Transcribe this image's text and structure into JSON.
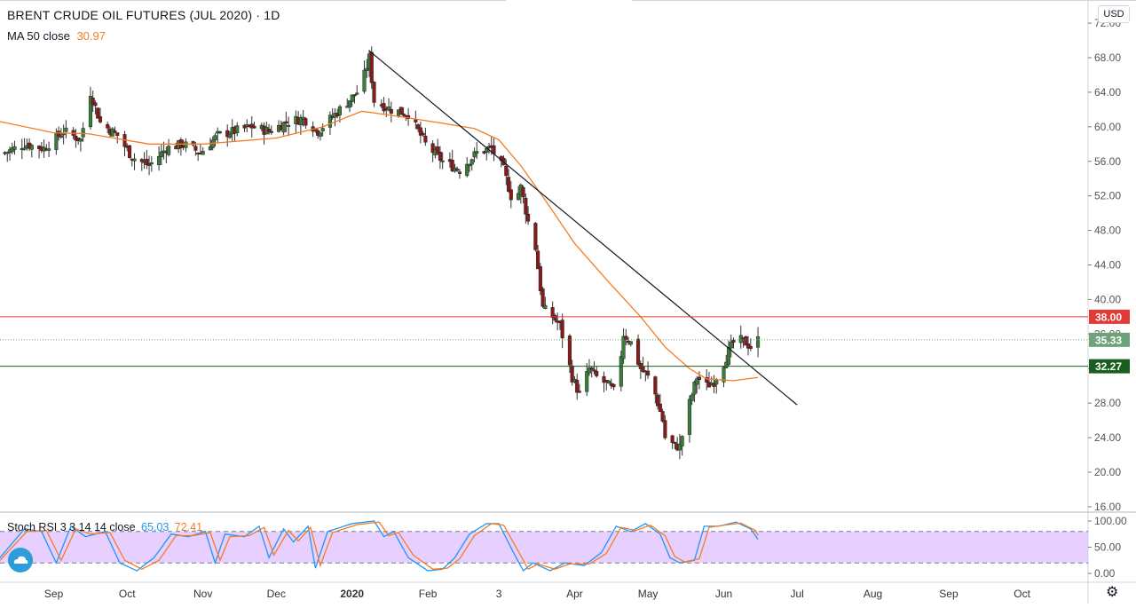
{
  "title": "BRENT CRUDE OIL FUTURES (JUL 2020) · 1D",
  "currency": "USD",
  "ma": {
    "label": "MA 50 close",
    "value": "30.97",
    "color": "#f57c22"
  },
  "stoch": {
    "label": "Stoch RSI 3 3 14 14 close",
    "k": "65.03",
    "d": "72.41",
    "k_color": "#2196f3",
    "d_color": "#f57c22"
  },
  "colors": {
    "up": "#26a69a",
    "down": "#ef5350",
    "up_body": "#3b7d3b",
    "down_body": "#8b1a1a",
    "resistance": "#e53935",
    "support": "#1b5e20",
    "last": "#6fa27a",
    "trendline": "#131722",
    "band": "#e3c8ff"
  },
  "chart_data": [
    {
      "type": "candlestick",
      "title": "BRENT CRUDE OIL FUTURES (JUL 2020) · 1D",
      "ylim": [
        16,
        72
      ],
      "y_ticks": [
        "16.00",
        "20.00",
        "24.00",
        "28.00",
        "32.00",
        "36.00",
        "40.00",
        "44.00",
        "48.00",
        "52.00",
        "56.00",
        "60.00",
        "64.00",
        "68.00",
        "72.00"
      ],
      "x_ticks": [
        "Sep",
        "Oct",
        "Nov",
        "Dec",
        "2020",
        "Feb",
        "3",
        "Apr",
        "May",
        "Jun",
        "Jul",
        "Aug",
        "Sep",
        "Oct"
      ],
      "x_tick_dates": [
        "2019-09-01",
        "2019-10-01",
        "2019-11-01",
        "2019-12-01",
        "2020-01-01",
        "2020-02-01",
        "2020-03-01",
        "2020-04-01",
        "2020-05-01",
        "2020-06-01",
        "2020-07-01",
        "2020-08-01",
        "2020-09-01",
        "2020-10-01"
      ],
      "xlim": [
        "2019-08-10",
        "2020-10-28"
      ],
      "close_path": [
        [
          "2019-08-12",
          57
        ],
        [
          "2019-08-20",
          58
        ],
        [
          "2019-08-28",
          57.5
        ],
        [
          "2019-09-05",
          59.5
        ],
        [
          "2019-09-12",
          58.5
        ],
        [
          "2019-09-16",
          64
        ],
        [
          "2019-09-20",
          60.5
        ],
        [
          "2019-09-27",
          59
        ],
        [
          "2019-10-03",
          56.5
        ],
        [
          "2019-10-10",
          55.5
        ],
        [
          "2019-10-17",
          57.5
        ],
        [
          "2019-10-24",
          58
        ],
        [
          "2019-10-31",
          57
        ],
        [
          "2019-11-07",
          59
        ],
        [
          "2019-11-14",
          59.5
        ],
        [
          "2019-11-21",
          60
        ],
        [
          "2019-11-28",
          59.5
        ],
        [
          "2019-12-05",
          60.5
        ],
        [
          "2019-12-12",
          61
        ],
        [
          "2019-12-18",
          59.5
        ],
        [
          "2019-12-27",
          62
        ],
        [
          "2020-01-03",
          64
        ],
        [
          "2020-01-06",
          66
        ],
        [
          "2020-01-08",
          68
        ],
        [
          "2020-01-10",
          63
        ],
        [
          "2020-01-17",
          62
        ],
        [
          "2020-01-24",
          61.5
        ],
        [
          "2020-01-31",
          58
        ],
        [
          "2020-02-07",
          56
        ],
        [
          "2020-02-14",
          55
        ],
        [
          "2020-02-21",
          57
        ],
        [
          "2020-02-27",
          57.5
        ],
        [
          "2020-03-03",
          55
        ],
        [
          "2020-03-07",
          51
        ],
        [
          "2020-03-10",
          53
        ],
        [
          "2020-03-13",
          49
        ],
        [
          "2020-03-16",
          46
        ],
        [
          "2020-03-19",
          39
        ],
        [
          "2020-03-23",
          38
        ],
        [
          "2020-03-26",
          37
        ],
        [
          "2020-03-31",
          31
        ],
        [
          "2020-04-03",
          29
        ],
        [
          "2020-04-07",
          32
        ],
        [
          "2020-04-10",
          31
        ],
        [
          "2020-04-15",
          30
        ],
        [
          "2020-04-18",
          29
        ],
        [
          "2020-04-21",
          36
        ],
        [
          "2020-04-24",
          35
        ],
        [
          "2020-04-28",
          32
        ],
        [
          "2020-05-01",
          31
        ],
        [
          "2020-05-04",
          29
        ],
        [
          "2020-05-07",
          26
        ],
        [
          "2020-05-08",
          24
        ],
        [
          "2020-05-12",
          23
        ],
        [
          "2020-05-14",
          23
        ],
        [
          "2020-05-18",
          28
        ],
        [
          "2020-05-21",
          31
        ],
        [
          "2020-05-25",
          30
        ],
        [
          "2020-05-28",
          30.5
        ],
        [
          "2020-05-31",
          32
        ],
        [
          "2020-06-03",
          34
        ],
        [
          "2020-06-06",
          35.5
        ],
        [
          "2020-06-10",
          35
        ],
        [
          "2020-06-12",
          34.5
        ],
        [
          "2020-06-15",
          35.33
        ]
      ],
      "ma50_path": [
        [
          "2019-08-10",
          60.6
        ],
        [
          "2019-09-01",
          59.3
        ],
        [
          "2019-09-15",
          59.2
        ],
        [
          "2019-10-10",
          58.0
        ],
        [
          "2019-11-01",
          58.0
        ],
        [
          "2019-12-01",
          58.7
        ],
        [
          "2019-12-20",
          60.0
        ],
        [
          "2020-01-05",
          61.8
        ],
        [
          "2020-01-20",
          61.2
        ],
        [
          "2020-02-05",
          60.5
        ],
        [
          "2020-02-20",
          59.8
        ],
        [
          "2020-03-01",
          58.5
        ],
        [
          "2020-03-10",
          55.5
        ],
        [
          "2020-03-20",
          51.5
        ],
        [
          "2020-04-01",
          46.5
        ],
        [
          "2020-04-15",
          42.0
        ],
        [
          "2020-04-28",
          38.0
        ],
        [
          "2020-05-08",
          34.5
        ],
        [
          "2020-05-18",
          32.0
        ],
        [
          "2020-05-25",
          30.8
        ],
        [
          "2020-06-05",
          30.6
        ],
        [
          "2020-06-15",
          30.97
        ]
      ],
      "trendline": [
        [
          "2020-01-08",
          68.8
        ],
        [
          "2020-07-01",
          27.8
        ]
      ],
      "horizontal_levels": [
        {
          "value": 38.0,
          "label": "38.00",
          "role": "resistance"
        },
        {
          "value": 35.33,
          "label": "35.33",
          "role": "last",
          "style": "dotted"
        },
        {
          "value": 32.27,
          "label": "32.27",
          "role": "support"
        }
      ]
    },
    {
      "type": "line",
      "title": "Stoch RSI 3 3 14 14 close",
      "ylim": [
        0,
        100
      ],
      "y_ticks": [
        "0.00",
        "50.00",
        "100.00"
      ],
      "band": [
        20,
        80
      ],
      "series": [
        {
          "name": "K",
          "last": 65.03,
          "values": [
            [
              "2019-08-10",
              30
            ],
            [
              "2019-08-20",
              85
            ],
            [
              "2019-08-27",
              80
            ],
            [
              "2019-09-02",
              20
            ],
            [
              "2019-09-08",
              90
            ],
            [
              "2019-09-14",
              70
            ],
            [
              "2019-09-22",
              80
            ],
            [
              "2019-09-28",
              20
            ],
            [
              "2019-10-05",
              5
            ],
            [
              "2019-10-12",
              30
            ],
            [
              "2019-10-19",
              75
            ],
            [
              "2019-10-26",
              70
            ],
            [
              "2019-11-02",
              80
            ],
            [
              "2019-11-06",
              20
            ],
            [
              "2019-11-10",
              75
            ],
            [
              "2019-11-18",
              70
            ],
            [
              "2019-11-24",
              90
            ],
            [
              "2019-11-28",
              30
            ],
            [
              "2019-12-04",
              85
            ],
            [
              "2019-12-08",
              60
            ],
            [
              "2019-12-14",
              90
            ],
            [
              "2019-12-17",
              10
            ],
            [
              "2019-12-22",
              80
            ],
            [
              "2020-01-01",
              95
            ],
            [
              "2020-01-10",
              100
            ],
            [
              "2020-01-14",
              70
            ],
            [
              "2020-01-18",
              80
            ],
            [
              "2020-01-24",
              30
            ],
            [
              "2020-02-01",
              5
            ],
            [
              "2020-02-07",
              8
            ],
            [
              "2020-02-12",
              30
            ],
            [
              "2020-02-18",
              75
            ],
            [
              "2020-02-25",
              95
            ],
            [
              "2020-03-01",
              95
            ],
            [
              "2020-03-07",
              40
            ],
            [
              "2020-03-11",
              5
            ],
            [
              "2020-03-15",
              20
            ],
            [
              "2020-03-22",
              5
            ],
            [
              "2020-03-28",
              20
            ],
            [
              "2020-04-05",
              15
            ],
            [
              "2020-04-12",
              40
            ],
            [
              "2020-04-18",
              90
            ],
            [
              "2020-04-24",
              80
            ],
            [
              "2020-04-30",
              95
            ],
            [
              "2020-05-06",
              75
            ],
            [
              "2020-05-10",
              30
            ],
            [
              "2020-05-14",
              20
            ],
            [
              "2020-05-20",
              25
            ],
            [
              "2020-05-24",
              90
            ],
            [
              "2020-05-30",
              90
            ],
            [
              "2020-06-06",
              98
            ],
            [
              "2020-06-12",
              85
            ],
            [
              "2020-06-15",
              65.03
            ]
          ]
        },
        {
          "name": "D",
          "last": 72.41,
          "values": [
            [
              "2019-08-10",
              25
            ],
            [
              "2019-08-21",
              80
            ],
            [
              "2019-08-29",
              82
            ],
            [
              "2019-09-04",
              25
            ],
            [
              "2019-09-10",
              85
            ],
            [
              "2019-09-16",
              75
            ],
            [
              "2019-09-24",
              78
            ],
            [
              "2019-09-30",
              25
            ],
            [
              "2019-10-07",
              8
            ],
            [
              "2019-10-14",
              25
            ],
            [
              "2019-10-21",
              72
            ],
            [
              "2019-10-28",
              72
            ],
            [
              "2019-11-04",
              78
            ],
            [
              "2019-11-08",
              25
            ],
            [
              "2019-11-12",
              70
            ],
            [
              "2019-11-20",
              72
            ],
            [
              "2019-11-26",
              88
            ],
            [
              "2019-11-30",
              35
            ],
            [
              "2019-12-06",
              82
            ],
            [
              "2019-12-10",
              62
            ],
            [
              "2019-12-15",
              88
            ],
            [
              "2019-12-19",
              15
            ],
            [
              "2019-12-24",
              78
            ],
            [
              "2020-01-03",
              93
            ],
            [
              "2020-01-12",
              98
            ],
            [
              "2020-01-16",
              72
            ],
            [
              "2020-01-20",
              78
            ],
            [
              "2020-01-26",
              35
            ],
            [
              "2020-02-03",
              8
            ],
            [
              "2020-02-09",
              10
            ],
            [
              "2020-02-14",
              28
            ],
            [
              "2020-02-20",
              72
            ],
            [
              "2020-02-27",
              95
            ],
            [
              "2020-03-03",
              92
            ],
            [
              "2020-03-09",
              42
            ],
            [
              "2020-03-13",
              8
            ],
            [
              "2020-03-17",
              18
            ],
            [
              "2020-03-24",
              8
            ],
            [
              "2020-03-30",
              18
            ],
            [
              "2020-04-07",
              18
            ],
            [
              "2020-04-14",
              38
            ],
            [
              "2020-04-20",
              88
            ],
            [
              "2020-04-26",
              82
            ],
            [
              "2020-05-02",
              92
            ],
            [
              "2020-05-08",
              72
            ],
            [
              "2020-05-12",
              32
            ],
            [
              "2020-05-16",
              22
            ],
            [
              "2020-05-22",
              28
            ],
            [
              "2020-05-26",
              88
            ],
            [
              "2020-06-01",
              92
            ],
            [
              "2020-06-08",
              96
            ],
            [
              "2020-06-14",
              82
            ],
            [
              "2020-06-15",
              72.41
            ]
          ]
        }
      ]
    }
  ]
}
